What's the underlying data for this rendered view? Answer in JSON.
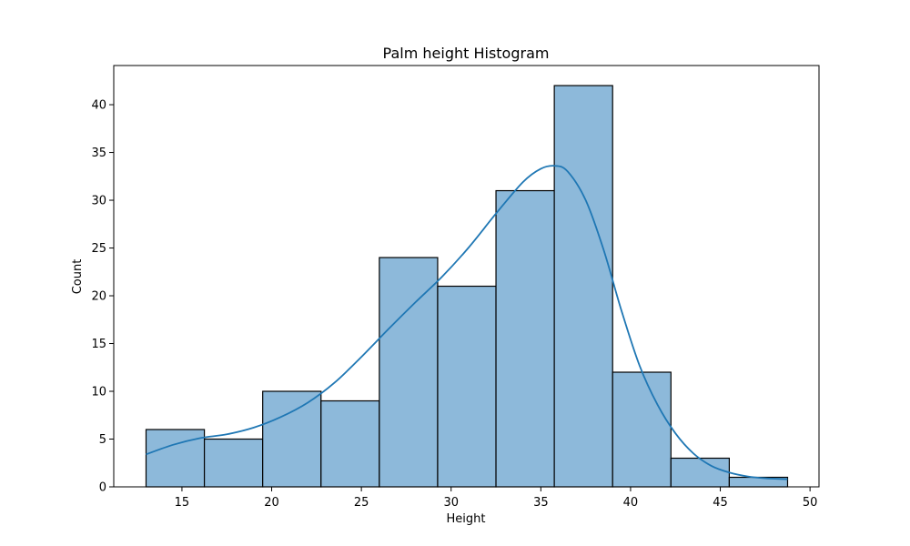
{
  "chart_data": {
    "type": "bar",
    "title": "Palm height Histogram",
    "xlabel": "Height",
    "ylabel": "Count",
    "xlim": [
      11.2,
      50.5
    ],
    "ylim": [
      0,
      44.1
    ],
    "xticks": [
      15,
      20,
      25,
      30,
      35,
      40,
      45,
      50
    ],
    "yticks": [
      0,
      5,
      10,
      15,
      20,
      25,
      30,
      35,
      40
    ],
    "bar_color": "#8db9da",
    "edge_color": "#000000",
    "line_color": "#1f77b4",
    "bins": [
      {
        "x0": 13.0,
        "x1": 16.25,
        "count": 6
      },
      {
        "x0": 16.25,
        "x1": 19.5,
        "count": 5
      },
      {
        "x0": 19.5,
        "x1": 22.75,
        "count": 10
      },
      {
        "x0": 22.75,
        "x1": 26.0,
        "count": 9
      },
      {
        "x0": 26.0,
        "x1": 29.25,
        "count": 24
      },
      {
        "x0": 29.25,
        "x1": 32.5,
        "count": 21
      },
      {
        "x0": 32.5,
        "x1": 35.75,
        "count": 31
      },
      {
        "x0": 35.75,
        "x1": 39.0,
        "count": 42
      },
      {
        "x0": 39.0,
        "x1": 42.25,
        "count": 12
      },
      {
        "x0": 42.25,
        "x1": 45.5,
        "count": 3
      },
      {
        "x0": 45.5,
        "x1": 48.75,
        "count": 1
      }
    ],
    "kde": {
      "x": [
        13.0,
        14.5,
        16.0,
        17.5,
        19.0,
        20.5,
        22.0,
        23.5,
        25.0,
        26.5,
        28.0,
        29.5,
        31.0,
        32.5,
        34.0,
        35.0,
        35.8,
        36.5,
        37.5,
        38.5,
        39.5,
        40.5,
        41.5,
        42.5,
        43.5,
        44.5,
        45.5,
        46.5,
        47.5,
        48.75
      ],
      "y": [
        3.4,
        4.4,
        5.1,
        5.5,
        6.2,
        7.3,
        8.8,
        10.9,
        13.6,
        16.5,
        19.3,
        22.0,
        25.1,
        28.6,
        31.9,
        33.3,
        33.6,
        33.0,
        30.0,
        24.8,
        18.4,
        12.7,
        8.6,
        5.6,
        3.5,
        2.2,
        1.5,
        1.1,
        0.9,
        0.8
      ]
    }
  }
}
